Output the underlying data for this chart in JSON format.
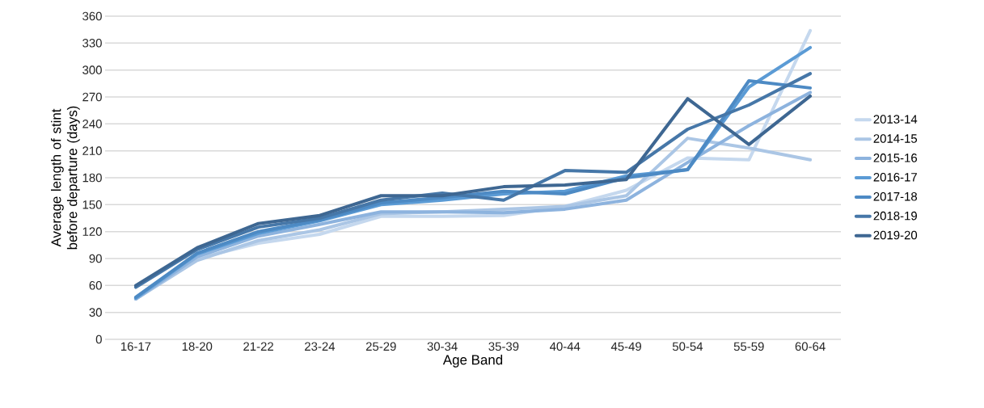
{
  "chart_data": {
    "type": "line",
    "categories": [
      "16-17",
      "18-20",
      "21-22",
      "23-24",
      "25-29",
      "30-34",
      "35-39",
      "40-44",
      "45-49",
      "50-54",
      "55-59",
      "60-64"
    ],
    "series": [
      {
        "name": "2013-14",
        "color": "#c5d8ee",
        "values": [
          45,
          90,
          107,
          117,
          137,
          137,
          138,
          148,
          166,
          202,
          200,
          344
        ]
      },
      {
        "name": "2014-15",
        "color": "#abc6e5",
        "values": [
          45,
          88,
          110,
          122,
          140,
          142,
          145,
          148,
          160,
          224,
          213,
          200
        ]
      },
      {
        "name": "2015-16",
        "color": "#8db3de",
        "values": [
          45,
          92,
          115,
          128,
          142,
          142,
          141,
          145,
          155,
          197,
          238,
          275
        ]
      },
      {
        "name": "2016-17",
        "color": "#5b9bd5",
        "values": [
          46,
          95,
          118,
          132,
          150,
          155,
          162,
          165,
          182,
          189,
          281,
          325
        ]
      },
      {
        "name": "2017-18",
        "color": "#4d8ac4",
        "values": [
          47,
          96,
          120,
          133,
          152,
          158,
          165,
          162,
          180,
          189,
          288,
          280
        ]
      },
      {
        "name": "2018-19",
        "color": "#4677a8",
        "values": [
          58,
          100,
          125,
          135,
          155,
          163,
          155,
          188,
          186,
          234,
          261,
          296
        ]
      },
      {
        "name": "2019-20",
        "color": "#3e6792",
        "values": [
          60,
          102,
          129,
          138,
          160,
          160,
          170,
          172,
          178,
          268,
          217,
          271
        ]
      }
    ],
    "xlabel": "Age Band",
    "ylabel": "Average length of stint before departure (days)",
    "ylim": [
      0,
      360
    ],
    "yticks": [
      0,
      30,
      60,
      90,
      120,
      150,
      180,
      210,
      240,
      270,
      300,
      330,
      360
    ],
    "grid": "y",
    "legend": "right"
  }
}
